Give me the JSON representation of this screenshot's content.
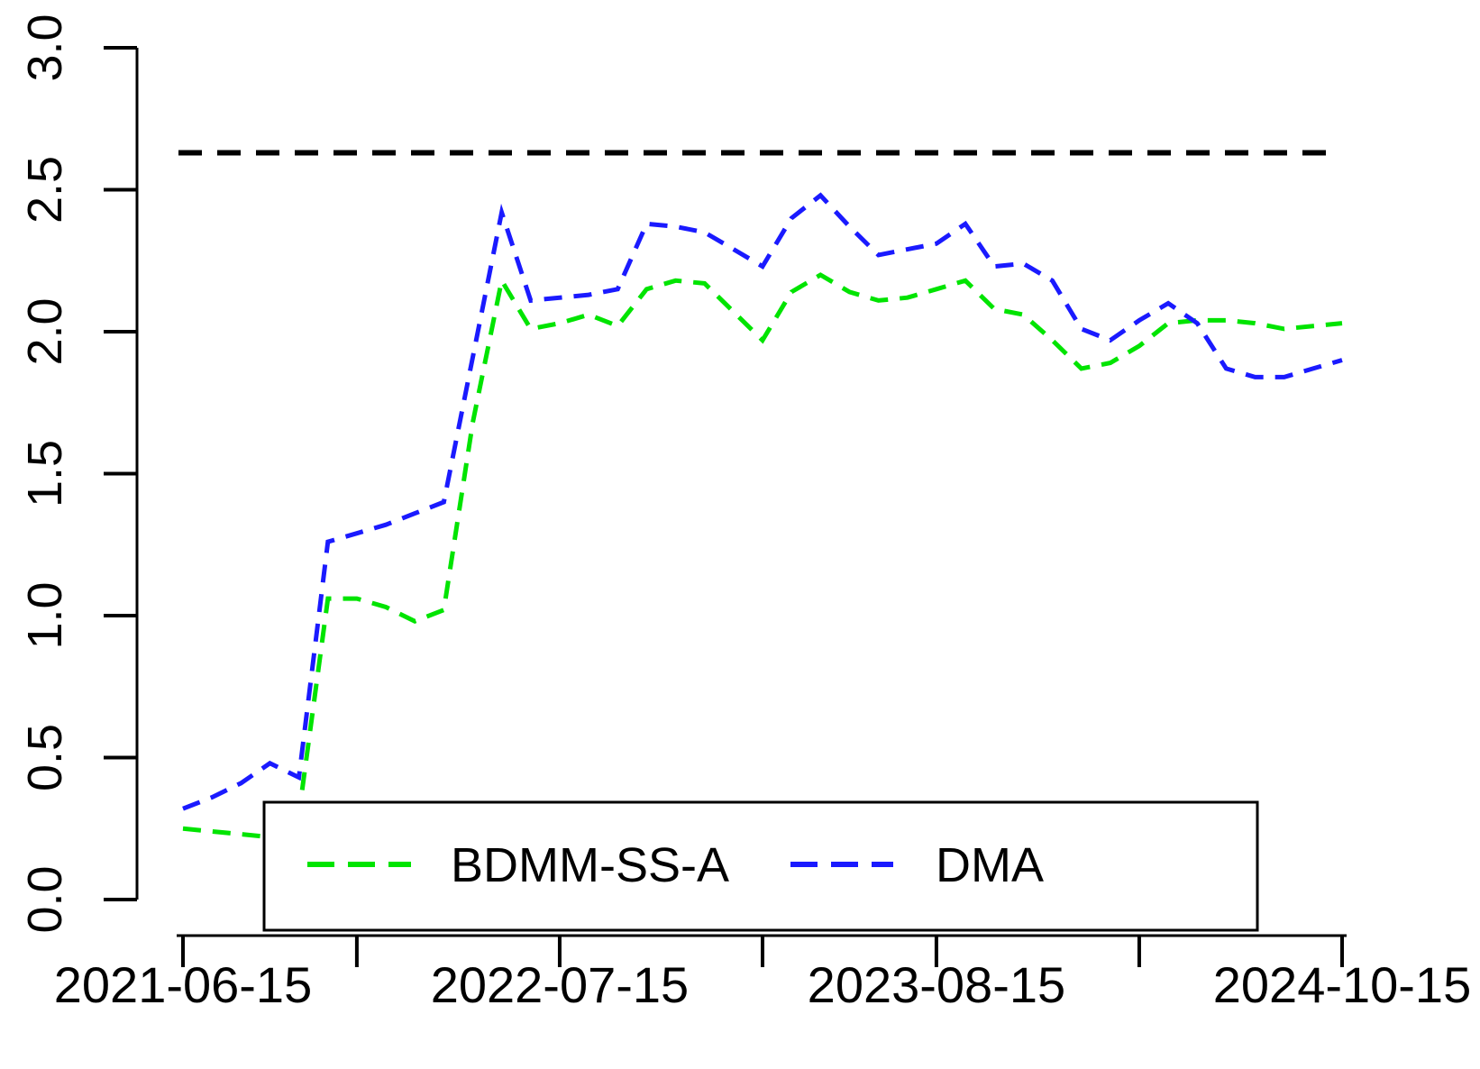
{
  "chart_data": {
    "type": "line",
    "title": "",
    "xlabel": "",
    "ylabel": "",
    "x_start": "2021-06-15",
    "x_end": "2024-10-15",
    "x_frequency": "monthly",
    "n_points": 41,
    "ylim": [
      0.0,
      3.0
    ],
    "grid": false,
    "y_tick_labels": [
      "3.0",
      "2.5",
      "2.0",
      "1.5",
      "1.0",
      "0.5",
      "0.0"
    ],
    "y_tick_values": [
      3.0,
      2.5,
      2.0,
      1.5,
      1.0,
      0.5,
      0.0
    ],
    "x_tick_indices": [
      0,
      6,
      13,
      20,
      26,
      33,
      40
    ],
    "x_labeled_ticks": [
      {
        "index": 0,
        "label": "2021-06-15"
      },
      {
        "index": 13,
        "label": "2022-07-15"
      },
      {
        "index": 26,
        "label": "2023-08-15"
      },
      {
        "index": 40,
        "label": "2024-10-15"
      }
    ],
    "reference_line": {
      "value": 2.63,
      "color": "#000000",
      "style": "dashed"
    },
    "series": [
      {
        "name": "BDMM-SS-A",
        "color": "#00e400",
        "style": "dashed",
        "values": [
          0.25,
          0.24,
          0.23,
          0.22,
          0.3,
          1.06,
          1.06,
          1.03,
          0.98,
          1.02,
          1.68,
          2.18,
          2.01,
          2.03,
          2.06,
          2.02,
          2.15,
          2.18,
          2.17,
          2.07,
          1.97,
          2.14,
          2.2,
          2.14,
          2.11,
          2.12,
          2.15,
          2.18,
          2.08,
          2.06,
          1.97,
          1.87,
          1.89,
          1.95,
          2.03,
          2.04,
          2.04,
          2.03,
          2.01,
          2.02,
          2.03
        ]
      },
      {
        "name": "DMA",
        "color": "#1a1aff",
        "style": "dashed",
        "values": [
          0.32,
          0.36,
          0.41,
          0.48,
          0.43,
          1.26,
          1.29,
          1.32,
          1.36,
          1.4,
          1.91,
          2.42,
          2.11,
          2.12,
          2.13,
          2.15,
          2.38,
          2.37,
          2.35,
          2.29,
          2.23,
          2.4,
          2.48,
          2.37,
          2.27,
          2.29,
          2.31,
          2.38,
          2.23,
          2.24,
          2.18,
          2.01,
          1.97,
          2.04,
          2.1,
          2.03,
          1.87,
          1.84,
          1.84,
          1.87,
          1.9
        ]
      }
    ],
    "legend": {
      "position": "bottom-left-inset",
      "entries": [
        {
          "label": "BDMM-SS-A",
          "color": "#00e400"
        },
        {
          "label": "DMA",
          "color": "#1a1aff"
        }
      ]
    }
  }
}
